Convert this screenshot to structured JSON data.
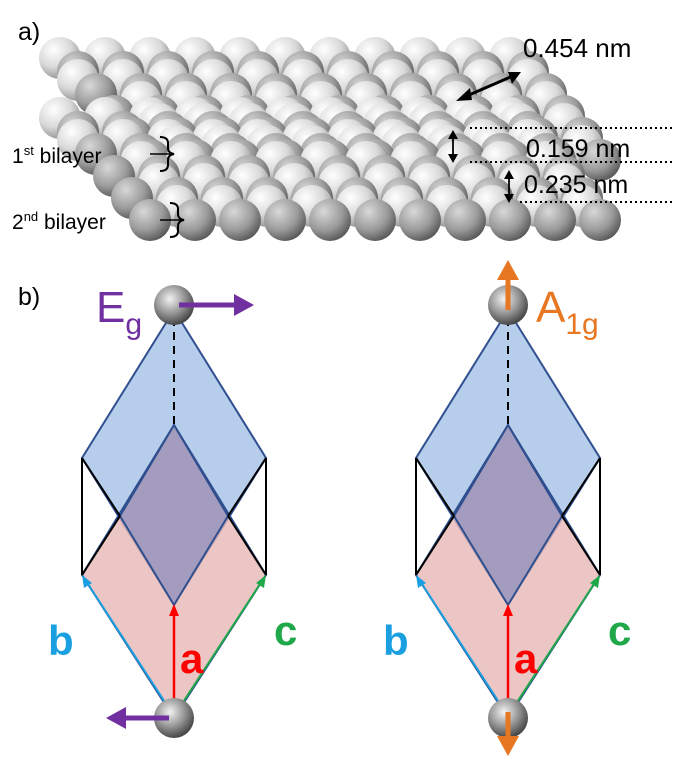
{
  "panel_a": {
    "label": "a)",
    "dimensions": {
      "lattice_constant": "0.454 nm",
      "bilayer_thickness": "0.159 nm",
      "interbilayer_gap": "0.235 nm"
    },
    "layers": {
      "first": {
        "base": "1",
        "sup": "st",
        "word": " bilayer"
      },
      "second": {
        "base": "2",
        "sup": "nd",
        "word": " bilayer"
      }
    }
  },
  "panel_b": {
    "label": "b)",
    "left_mode": {
      "base": "E",
      "sub": "g"
    },
    "right_mode": {
      "base": "A",
      "sub": "1g"
    },
    "vectors": {
      "a": "a",
      "b": "b",
      "c": "c"
    }
  },
  "colors": {
    "eg_mode": "#7030a0",
    "a1g_mode": "#e87722",
    "vector_a": "#ff0000",
    "vector_b": "#1a9fe0",
    "vector_c": "#1fa84a",
    "upper_face": "#a9c4e8",
    "lower_face": "#e7b7b7",
    "edge": "#2f4f8f"
  }
}
